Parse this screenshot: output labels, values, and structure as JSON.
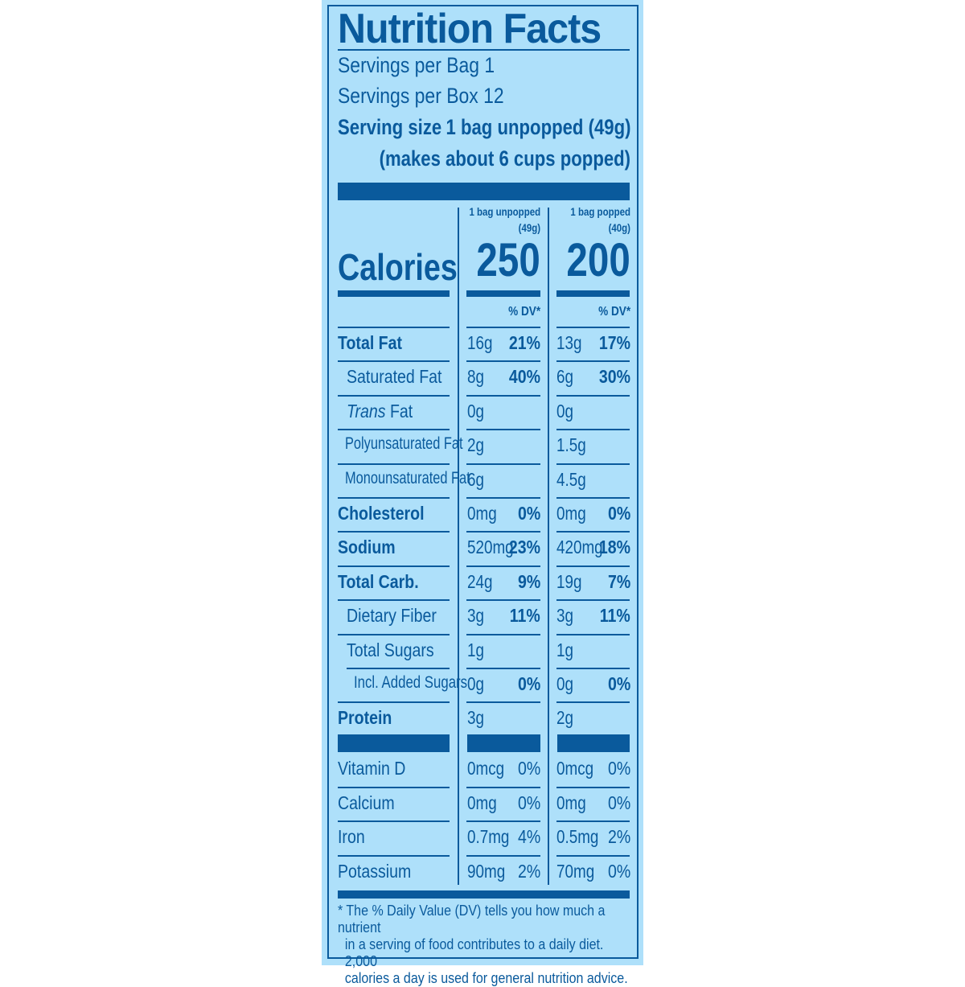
{
  "label": {
    "title": "Nutrition Facts",
    "servings_per_bag": "Servings per Bag 1",
    "servings_per_box": "Servings per Box 12",
    "serving_size_label": "Serving size",
    "serving_size_value": "1 bag unpopped (49g)",
    "serving_size_note": "(makes about 6 cups popped)",
    "columns": [
      {
        "header_line1": "1 bag unpopped",
        "header_line2": "(49g)",
        "calories": "250",
        "dv_header": "% DV*"
      },
      {
        "header_line1": "1 bag popped",
        "header_line2": "(40g)",
        "calories": "200",
        "dv_header": "% DV*"
      }
    ],
    "calories_label": "Calories",
    "nutrients": [
      {
        "name": "Total Fat",
        "unpopped_amount": "16g",
        "unpopped_dv": "21%",
        "popped_amount": "13g",
        "popped_dv": "17%"
      },
      {
        "name": "Saturated Fat",
        "unpopped_amount": "8g",
        "unpopped_dv": "40%",
        "popped_amount": "6g",
        "popped_dv": "30%"
      },
      {
        "name_italic": "Trans",
        "name_rest": " Fat",
        "unpopped_amount": "0g",
        "unpopped_dv": "",
        "popped_amount": "0g",
        "popped_dv": ""
      },
      {
        "name": "Polyunsaturated Fat",
        "unpopped_amount": "2g",
        "unpopped_dv": "",
        "popped_amount": "1.5g",
        "popped_dv": ""
      },
      {
        "name": "Monounsaturated Fat",
        "unpopped_amount": "6g",
        "unpopped_dv": "",
        "popped_amount": "4.5g",
        "popped_dv": ""
      },
      {
        "name": "Cholesterol",
        "unpopped_amount": "0mg",
        "unpopped_dv": "0%",
        "popped_amount": "0mg",
        "popped_dv": "0%"
      },
      {
        "name": "Sodium",
        "unpopped_amount": "520mg",
        "unpopped_dv": "23%",
        "popped_amount": "420mg",
        "popped_dv": "18%"
      },
      {
        "name": "Total Carb.",
        "unpopped_amount": "24g",
        "unpopped_dv": "9%",
        "popped_amount": "19g",
        "popped_dv": "7%"
      },
      {
        "name": "Dietary Fiber",
        "unpopped_amount": "3g",
        "unpopped_dv": "11%",
        "popped_amount": "3g",
        "popped_dv": "11%"
      },
      {
        "name": "Total Sugars",
        "unpopped_amount": "1g",
        "unpopped_dv": "",
        "popped_amount": "1g",
        "popped_dv": ""
      },
      {
        "name": "Incl. Added Sugars",
        "unpopped_amount": "0g",
        "unpopped_dv": "0%",
        "popped_amount": "0g",
        "popped_dv": "0%"
      },
      {
        "name": "Protein",
        "unpopped_amount": "3g",
        "unpopped_dv": "",
        "popped_amount": "2g",
        "popped_dv": ""
      }
    ],
    "vitamins": [
      {
        "name": "Vitamin D",
        "unpopped_amount": "0mcg",
        "unpopped_dv": "0%",
        "popped_amount": "0mcg",
        "popped_dv": "0%"
      },
      {
        "name": "Calcium",
        "unpopped_amount": "0mg",
        "unpopped_dv": "0%",
        "popped_amount": "0mg",
        "popped_dv": "0%"
      },
      {
        "name": "Iron",
        "unpopped_amount": "0.7mg",
        "unpopped_dv": "4%",
        "popped_amount": "0.5mg",
        "popped_dv": "2%"
      },
      {
        "name": "Potassium",
        "unpopped_amount": "90mg",
        "unpopped_dv": "2%",
        "popped_amount": "70mg",
        "popped_dv": "0%"
      }
    ],
    "footnote": {
      "line1": "* The % Daily Value (DV) tells you how much a nutrient",
      "line2": "in a serving of food contributes to a daily diet. 2,000",
      "line3": "calories a day is used for general nutrition advice."
    }
  },
  "colors": {
    "background": "#aee0fa",
    "ink": "#0a5a9c"
  }
}
